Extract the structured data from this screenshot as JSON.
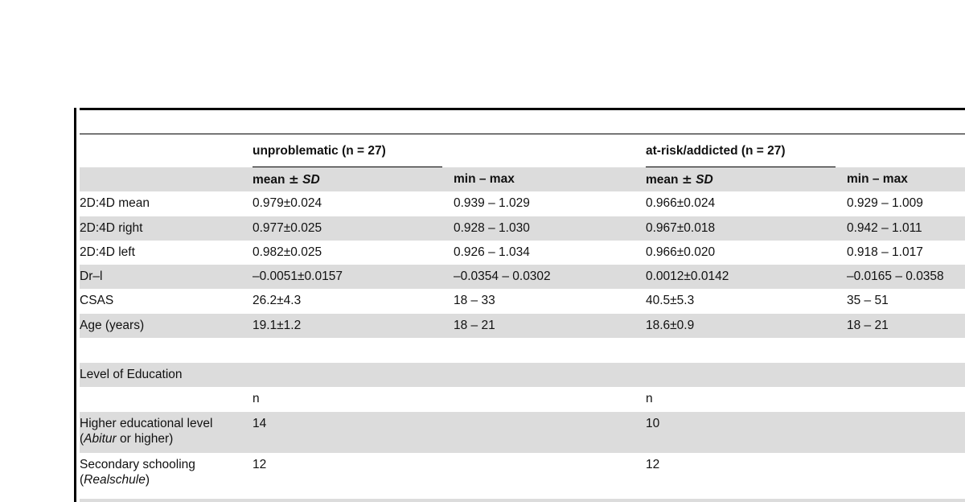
{
  "table": {
    "group_headers": {
      "group1": "unproblematic (n = 27)",
      "group2": "at-risk/addicted (n = 27)"
    },
    "sub_headers": {
      "mean_label": "mean",
      "pm": "±",
      "sd": "SD",
      "minmax": "min – max"
    },
    "rows": [
      {
        "label": "2D:4D mean",
        "g1_mean": "0.979±0.024",
        "g1_range": "0.939 – 1.029",
        "g2_mean": "0.966±0.024",
        "g2_range": "0.929 – 1.009"
      },
      {
        "label": "2D:4D right",
        "g1_mean": "0.977±0.025",
        "g1_range": "0.928 – 1.030",
        "g2_mean": "0.967±0.018",
        "g2_range": "0.942 – 1.011"
      },
      {
        "label": "2D:4D left",
        "g1_mean": "0.982±0.025",
        "g1_range": "0.926 – 1.034",
        "g2_mean": "0.966±0.020",
        "g2_range": "0.918 – 1.017"
      },
      {
        "label": "Dr–l",
        "g1_mean": "–0.0051±0.0157",
        "g1_range": "–0.0354 – 0.0302",
        "g2_mean": "0.0012±0.0142",
        "g2_range": "–0.0165 – 0.0358"
      },
      {
        "label": "CSAS",
        "g1_mean": "26.2±4.3",
        "g1_range": "18 – 33",
        "g2_mean": "40.5±5.3",
        "g2_range": "35 – 51"
      },
      {
        "label": "Age (years)",
        "g1_mean": "19.1±1.2",
        "g1_range": "18 – 21",
        "g2_mean": "18.6±0.9",
        "g2_range": "18 – 21"
      }
    ],
    "education": {
      "section_label": "Level of Education",
      "n_label_g1": "n",
      "n_label_g2": "n",
      "rows": [
        {
          "line1": "Higher educational level",
          "line2_italic": "Abitur",
          "line2_rest": " or higher)",
          "line2_open": "(",
          "g1": "14",
          "g2": "10"
        },
        {
          "line1": "Secondary schooling",
          "line2_open": "(",
          "line2_italic": "Realschule",
          "line2_rest": ")",
          "g1": "12",
          "g2": "12"
        }
      ]
    }
  }
}
